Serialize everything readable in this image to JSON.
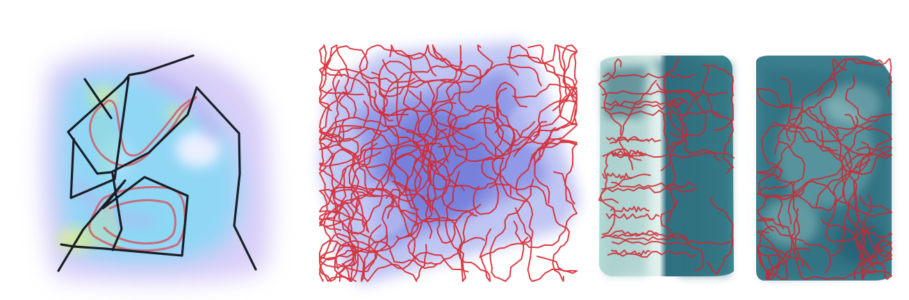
{
  "figure": {
    "panels": [
      {
        "id": "panel-a",
        "kind": "2d-field-with-paths"
      },
      {
        "id": "panel-b",
        "kind": "3d-volume-with-paths"
      },
      {
        "id": "panel-c",
        "kind": "volume-slab-with-paths"
      },
      {
        "id": "panel-d",
        "kind": "volume-slab-with-paths"
      }
    ],
    "colors": {
      "path_red": "#d7262e",
      "path_dark": "#1a1d24",
      "field_cyan": "#7fd8f5",
      "field_lilac": "#a99cf0",
      "field_yellow": "#e7f089",
      "volume_blue": "#5865d8",
      "slab_teal": "#2e6e7e",
      "slab_light": "#d7ecea"
    }
  }
}
